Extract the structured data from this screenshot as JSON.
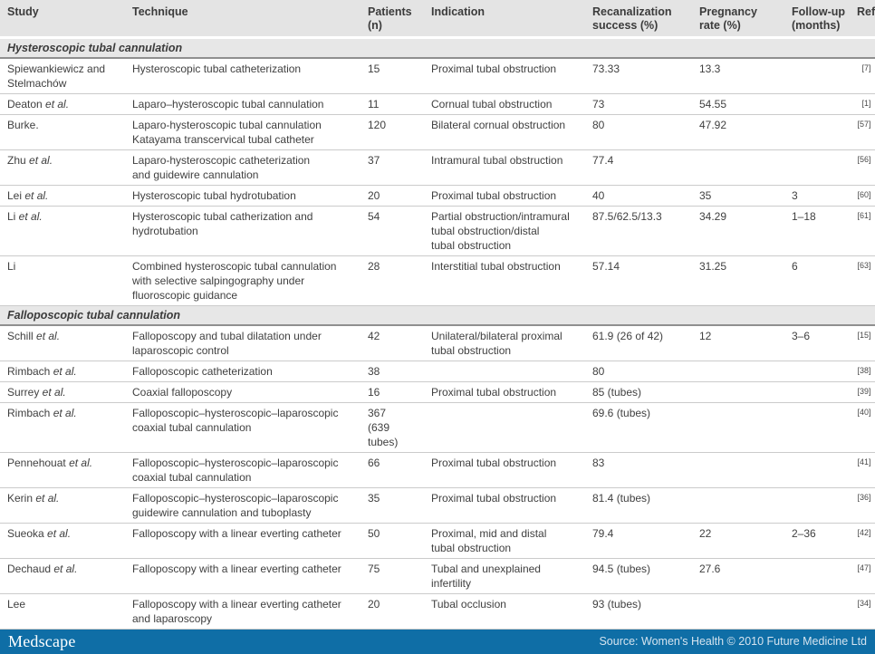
{
  "colors": {
    "header_bg": "#e4e4e4",
    "section_bg": "#e7e7e7",
    "row_divider": "#cbcbcb",
    "footer_bar": "#0f6ea6",
    "text": "#404040"
  },
  "columns": [
    {
      "label": "Study"
    },
    {
      "label": "Technique"
    },
    {
      "label": "Patients\n(n)"
    },
    {
      "label": "Indication"
    },
    {
      "label": "Recanalization\nsuccess (%)"
    },
    {
      "label": "Pregnancy\nrate (%)"
    },
    {
      "label": "Follow-up\n(months)"
    },
    {
      "label": "Ref."
    }
  ],
  "sections": [
    {
      "title": "Hysteroscopic tubal cannulation",
      "rows": [
        {
          "study": "Spiewankiewicz and\nStelmachów",
          "suffix": "",
          "technique": "Hysteroscopic tubal catheterization",
          "patients": "15",
          "indication": "Proximal tubal obstruction",
          "recanalization": "73.33",
          "pregnancy": "13.3",
          "followup": "",
          "ref": "[7]"
        },
        {
          "study": "Deaton",
          "suffix": "et al.",
          "technique": "Laparo–hysteroscopic tubal cannulation",
          "patients": "11",
          "indication": "Cornual tubal obstruction",
          "recanalization": "73",
          "pregnancy": "54.55",
          "followup": "",
          "ref": "[1]"
        },
        {
          "study": "Burke.",
          "suffix": "",
          "technique": "Laparo-hysteroscopic tubal cannulation\nKatayama transcervical tubal catheter",
          "patients": "120",
          "indication": "Bilateral cornual obstruction",
          "recanalization": "80",
          "pregnancy": "47.92",
          "followup": "",
          "ref": "[57]"
        },
        {
          "study": "Zhu",
          "suffix": "et al.",
          "technique": "Laparo-hysteroscopic catheterization\nand guidewire cannulation",
          "patients": "37",
          "indication": "Intramural tubal obstruction",
          "recanalization": "77.4",
          "pregnancy": "",
          "followup": "",
          "ref": "[56]"
        },
        {
          "study": "Lei",
          "suffix": "et al.",
          "technique": "Hysteroscopic tubal hydrotubation",
          "patients": "20",
          "indication": "Proximal tubal obstruction",
          "recanalization": "40",
          "pregnancy": "35",
          "followup": "3",
          "ref": "[60]"
        },
        {
          "study": "Li",
          "suffix": "et al.",
          "technique": "Hysteroscopic tubal catherization and\nhydrotubation",
          "patients": "54",
          "indication": "Partial obstruction/intramural\ntubal obstruction/distal\ntubal obstruction",
          "recanalization": "87.5/62.5/13.3",
          "pregnancy": "34.29",
          "followup": "1–18",
          "ref": "[61]"
        },
        {
          "study": "Li",
          "suffix": "",
          "technique": "Combined hysteroscopic tubal cannulation\nwith selective salpingography under\nfluoroscopic guidance",
          "patients": "28",
          "indication": "Interstitial tubal obstruction",
          "recanalization": "57.14",
          "pregnancy": "31.25",
          "followup": "6",
          "ref": "[63]"
        }
      ]
    },
    {
      "title": "Falloposcopic tubal cannulation",
      "rows": [
        {
          "study": "Schill",
          "suffix": "et al.",
          "technique": "Falloposcopy and tubal dilatation under\nlaparoscopic control",
          "patients": "42",
          "indication": "Unilateral/bilateral proximal\ntubal obstruction",
          "recanalization": "61.9 (26 of 42)",
          "pregnancy": "12",
          "followup": "3–6",
          "ref": "[15]"
        },
        {
          "study": "Rimbach",
          "suffix": "et al.",
          "technique": "Falloposcopic catheterization",
          "patients": "38",
          "indication": "",
          "recanalization": "80",
          "pregnancy": "",
          "followup": "",
          "ref": "[38]"
        },
        {
          "study": "Surrey",
          "suffix": "et al.",
          "technique": "Coaxial falloposcopy",
          "patients": "16",
          "indication": "Proximal tubal obstruction",
          "recanalization": "85 (tubes)",
          "pregnancy": "",
          "followup": "",
          "ref": "[39]"
        },
        {
          "study": "Rimbach",
          "suffix": "et al.",
          "technique": "Falloposcopic–hysteroscopic–laparoscopic\ncoaxial tubal cannulation",
          "patients": "367\n(639 tubes)",
          "indication": "",
          "recanalization": "69.6 (tubes)",
          "pregnancy": "",
          "followup": "",
          "ref": "[40]"
        },
        {
          "study": "Pennehouat",
          "suffix": "et al.",
          "technique": "Falloposcopic–hysteroscopic–laparoscopic\ncoaxial tubal cannulation",
          "patients": "66",
          "indication": "Proximal tubal obstruction",
          "recanalization": "83",
          "pregnancy": "",
          "followup": "",
          "ref": "[41]"
        },
        {
          "study": "Kerin",
          "suffix": "et al.",
          "technique": "Falloposcopic–hysteroscopic–laparoscopic\nguidewire cannulation and tuboplasty",
          "patients": "35",
          "indication": "Proximal tubal obstruction",
          "recanalization": "81.4 (tubes)",
          "pregnancy": "",
          "followup": "",
          "ref": "[36]"
        },
        {
          "study": "Sueoka",
          "suffix": "et al.",
          "technique": "Falloposcopy with a linear everting catheter",
          "patients": "50",
          "indication": "Proximal, mid and distal\ntubal obstruction",
          "recanalization": "79.4",
          "pregnancy": "22",
          "followup": "2–36",
          "ref": "[42]"
        },
        {
          "study": "Dechaud",
          "suffix": "et al.",
          "technique": "Falloposcopy with a linear everting catheter",
          "patients": "75",
          "indication": "Tubal and unexplained infertility",
          "recanalization": "94.5 (tubes)",
          "pregnancy": "27.6",
          "followup": "",
          "ref": "[47]"
        },
        {
          "study": "Lee",
          "suffix": "",
          "technique": "Falloposcopy with a linear everting catheter\nand laparoscopy",
          "patients": "20",
          "indication": "Tubal occlusion",
          "recanalization": "93 (tubes)",
          "pregnancy": "",
          "followup": "",
          "ref": "[34]"
        }
      ]
    }
  ],
  "footer": {
    "logo": "Medscape",
    "source": "Source: Women's Health © 2010 Future Medicine Ltd"
  }
}
